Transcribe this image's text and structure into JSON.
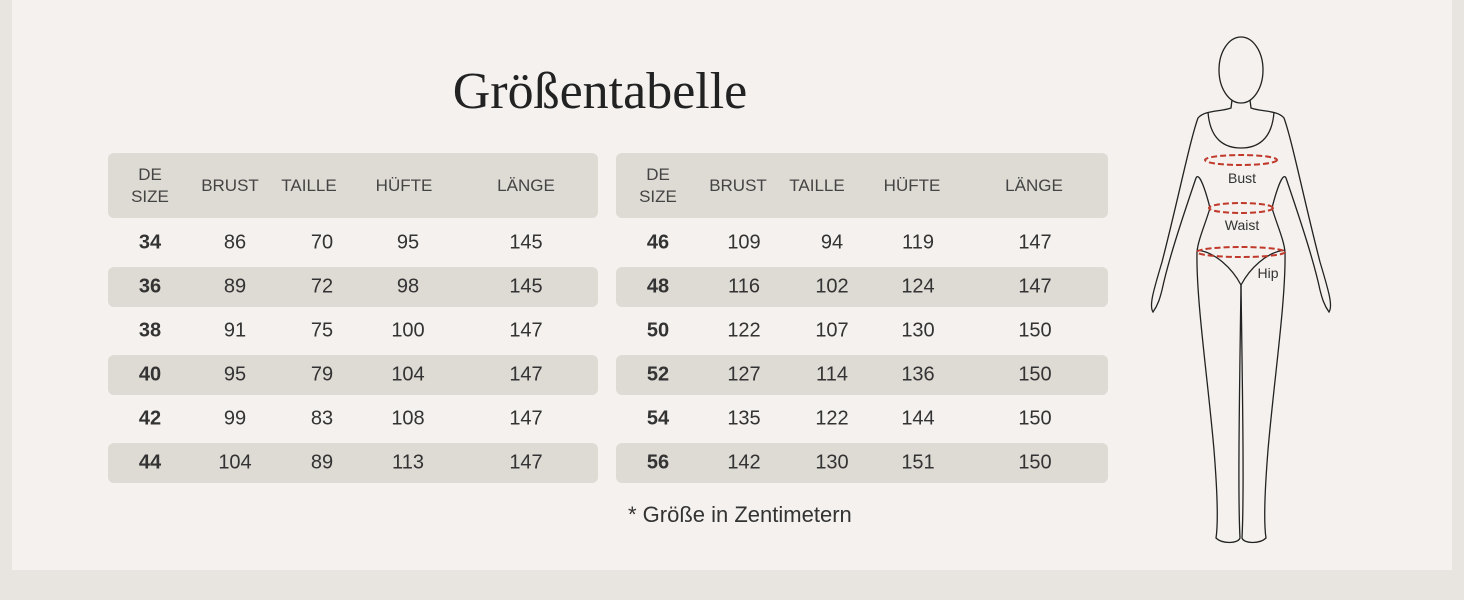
{
  "title": "Größentabelle",
  "tables": [
    {
      "headers": [
        "DE SIZE",
        "BRUST",
        "TAILLE",
        "HÜFTE",
        "LÄNGE"
      ],
      "rows": [
        [
          34,
          86,
          70,
          95,
          145
        ],
        [
          36,
          89,
          72,
          98,
          145
        ],
        [
          38,
          91,
          75,
          100,
          147
        ],
        [
          40,
          95,
          79,
          104,
          147
        ],
        [
          42,
          99,
          83,
          108,
          147
        ],
        [
          44,
          104,
          89,
          113,
          147
        ]
      ]
    },
    {
      "headers": [
        "DE SIZE",
        "BRUST",
        "TAILLE",
        "HÜFTE",
        "LÄNGE"
      ],
      "rows": [
        [
          46,
          109,
          94,
          119,
          147
        ],
        [
          48,
          116,
          102,
          124,
          147
        ],
        [
          50,
          122,
          107,
          130,
          150
        ],
        [
          52,
          127,
          114,
          136,
          150
        ],
        [
          54,
          135,
          122,
          144,
          150
        ],
        [
          56,
          142,
          130,
          151,
          150
        ]
      ]
    }
  ],
  "note": "* Größe in Zentimetern",
  "figure": {
    "labels": [
      "Bust",
      "Waist",
      "Hip"
    ]
  }
}
